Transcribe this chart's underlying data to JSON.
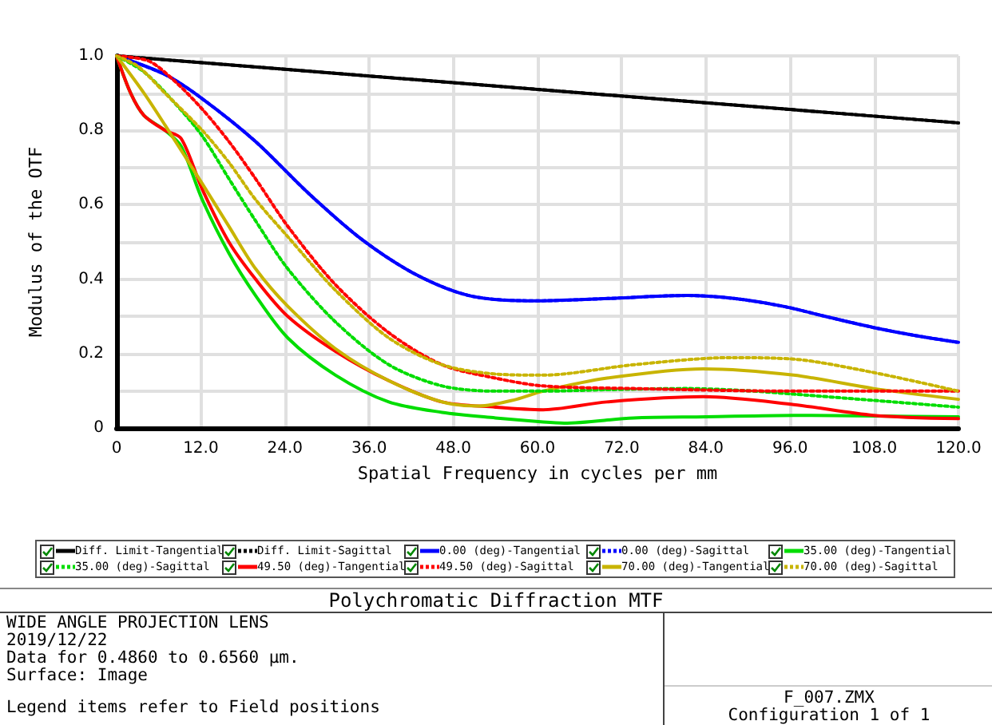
{
  "chart_data": {
    "type": "line",
    "title": "Polychromatic Diffraction MTF",
    "xlabel": "Spatial Frequency in cycles per mm",
    "ylabel": "Modulus of the OTF",
    "xlim": [
      0,
      120
    ],
    "xticks": [
      0,
      {
        "value": 12,
        "label": "12.0"
      },
      {
        "value": 24,
        "label": "24.0"
      },
      {
        "value": 36,
        "label": "36.0"
      },
      {
        "value": 48,
        "label": "48.0"
      },
      {
        "value": 60,
        "label": "60.0"
      },
      {
        "value": 72,
        "label": "72.0"
      },
      {
        "value": 84,
        "label": "84.0"
      },
      {
        "value": 96,
        "label": "96.0"
      },
      {
        "value": 108,
        "label": "108.0"
      },
      {
        "value": 120,
        "label": "120.0"
      }
    ],
    "ylim": [
      0,
      1
    ],
    "yticks": [
      0,
      {
        "value": 0.1,
        "label": null
      },
      0.2,
      {
        "value": 0.3,
        "label": null
      },
      0.4,
      {
        "value": 0.5,
        "label": null
      },
      0.6,
      {
        "value": 0.7,
        "label": null
      },
      0.8,
      {
        "value": 0.9,
        "label": null
      },
      {
        "value": 1,
        "label": "1.0"
      }
    ],
    "grid": true,
    "legend": "bottom",
    "marker": "none",
    "series": [
      {
        "name": "Diff. Limit-Tangential",
        "color": "#000000",
        "line_style": "solid",
        "x": [
          0,
          24,
          48,
          72,
          96,
          120
        ],
        "values": [
          1,
          0.964,
          0.928,
          0.892,
          0.856,
          0.82
        ]
      },
      {
        "name": "Diff. Limit-Sagittal",
        "color": "#000000",
        "line_style": "dotted",
        "x": [
          0,
          24,
          48,
          72,
          96,
          120
        ],
        "values": [
          1,
          0.964,
          0.928,
          0.892,
          0.856,
          0.82
        ]
      },
      {
        "name": "0.00 (deg)-Tangential",
        "color": "#0000ff",
        "line_style": "solid",
        "x": [
          0,
          6.9,
          12.2,
          19.8,
          27.4,
          35,
          42.6,
          50.2,
          58.5,
          60.8,
          70,
          81.3,
          88,
          95,
          101,
          107.9,
          114,
          120
        ],
        "values": [
          1,
          0.95,
          0.885,
          0.77,
          0.63,
          0.506,
          0.413,
          0.356,
          0.342,
          0.342,
          0.348,
          0.356,
          0.348,
          0.327,
          0.3,
          0.27,
          0.248,
          0.23
        ]
      },
      {
        "name": "0.00 (deg)-Sagittal",
        "color": "#0000ff",
        "line_style": "dotted",
        "x": [
          0,
          6.9,
          12.2,
          19.8,
          27.4,
          35,
          42.6,
          50.2,
          58.5,
          60.8,
          70,
          81.3,
          88,
          95,
          101,
          107.9,
          114,
          120
        ],
        "values": [
          1,
          0.95,
          0.885,
          0.77,
          0.63,
          0.506,
          0.413,
          0.356,
          0.342,
          0.342,
          0.348,
          0.356,
          0.348,
          0.327,
          0.3,
          0.27,
          0.248,
          0.23
        ]
      },
      {
        "name": "35.00 (deg)-Tangential",
        "color": "#00dd00",
        "line_style": "solid",
        "x": [
          0,
          2,
          3.9,
          6.9,
          9.2,
          12.2,
          16,
          19.8,
          24.4,
          31.2,
          38.8,
          46.4,
          54,
          60.8,
          63.8,
          73.7,
          84,
          96.5,
          108,
          120
        ],
        "values": [
          1,
          0.9,
          0.84,
          0.8,
          0.757,
          0.614,
          0.47,
          0.356,
          0.242,
          0.142,
          0.07,
          0.042,
          0.027,
          0.016,
          0.013,
          0.027,
          0.03,
          0.034,
          0.032,
          0.03
        ]
      },
      {
        "name": "35.00 (deg)-Sagittal",
        "color": "#00dd00",
        "line_style": "dotted",
        "x": [
          0,
          3.9,
          8.4,
          12.2,
          16,
          19.8,
          24.4,
          31.2,
          38.8,
          46.4,
          54,
          60.8,
          70,
          81.3,
          90,
          96.5,
          108,
          120
        ],
        "values": [
          1,
          0.957,
          0.871,
          0.785,
          0.67,
          0.557,
          0.428,
          0.285,
          0.17,
          0.113,
          0.099,
          0.099,
          0.103,
          0.106,
          0.1,
          0.091,
          0.074,
          0.056
        ]
      },
      {
        "name": "49.50 (deg)-Tangential",
        "color": "#ff0000",
        "line_style": "solid",
        "x": [
          0,
          2,
          3.9,
          6.9,
          9.2,
          12.2,
          16,
          19.8,
          24.4,
          31.2,
          38.8,
          46.4,
          54,
          60.8,
          69.9,
          83.6,
          96.5,
          107.9,
          120
        ],
        "values": [
          1,
          0.9,
          0.84,
          0.8,
          0.778,
          0.642,
          0.5,
          0.4,
          0.3,
          0.206,
          0.127,
          0.07,
          0.056,
          0.049,
          0.07,
          0.084,
          0.063,
          0.034,
          0.025
        ]
      },
      {
        "name": "49.50 (deg)-Sagittal",
        "color": "#ff0000",
        "line_style": "dotted",
        "x": [
          0,
          4.6,
          8.4,
          12.2,
          16,
          19.8,
          24.4,
          31.2,
          38.8,
          46.4,
          54,
          60.8,
          73.7,
          96.5,
          120
        ],
        "values": [
          1,
          0.986,
          0.93,
          0.857,
          0.77,
          0.67,
          0.542,
          0.385,
          0.256,
          0.17,
          0.134,
          0.113,
          0.106,
          0.099,
          0.099
        ]
      },
      {
        "name": "70.00 (deg)-Tangential",
        "color": "#c8b400",
        "line_style": "solid",
        "x": [
          0,
          3.9,
          6.9,
          12.2,
          16,
          19.8,
          24.4,
          31.2,
          38.8,
          46.4,
          51.7,
          57,
          60.8,
          69.9,
          83.6,
          96.5,
          107.9,
          120
        ],
        "values": [
          1,
          0.9,
          0.814,
          0.657,
          0.542,
          0.428,
          0.327,
          0.213,
          0.127,
          0.07,
          0.059,
          0.077,
          0.099,
          0.134,
          0.159,
          0.142,
          0.106,
          0.077
        ]
      },
      {
        "name": "70.00 (deg)-Sagittal",
        "color": "#c8b400",
        "line_style": "dotted",
        "x": [
          0,
          3.1,
          6.9,
          12.2,
          16,
          19.8,
          24.4,
          31.2,
          38.8,
          46.4,
          54,
          60.8,
          73.7,
          87.4,
          96.5,
          107.9,
          120
        ],
        "values": [
          1,
          0.971,
          0.9,
          0.8,
          0.714,
          0.614,
          0.514,
          0.37,
          0.242,
          0.17,
          0.145,
          0.142,
          0.17,
          0.189,
          0.185,
          0.149,
          0.099
        ]
      }
    ],
    "annotations": [
      "WIDE ANGLE PROJECTION LENS",
      "2019/12/22",
      "Data for 0.4860 to 0.6560 µm.",
      "Surface: Image",
      "Legend items refer to Field positions",
      "F_007.ZMX",
      "Configuration 1 of 1"
    ]
  }
}
